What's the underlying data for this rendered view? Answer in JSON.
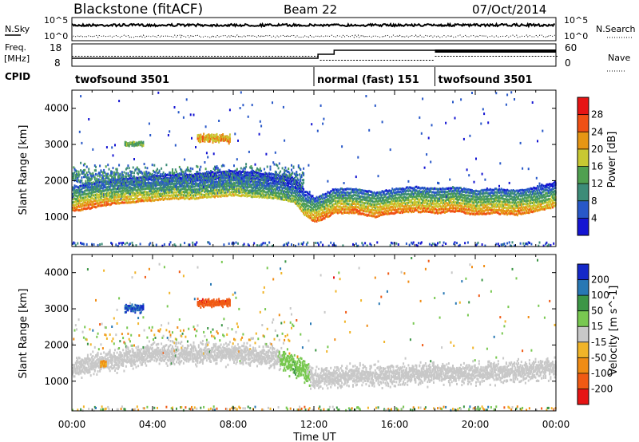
{
  "header": {
    "station": "Blackstone (fitACF)",
    "beam": "Beam 22",
    "date": "07/Oct/2014"
  },
  "noise_panel": {
    "left_label": "N.Sky",
    "right_label": "N.Search",
    "left_ticks": [
      "10^5",
      "10^0"
    ],
    "right_ticks": [
      "10^5",
      "10^0"
    ]
  },
  "freq_panel": {
    "left_label_line1": "Freq.",
    "left_label_line2": "[MHz]",
    "right_label": "Nave",
    "left_ticks": [
      "18",
      "8"
    ],
    "right_ticks": [
      "60",
      "0"
    ]
  },
  "cpid": {
    "label": "CPID",
    "segments": [
      {
        "name": "twofsound 3501",
        "start_hour": 0,
        "end_hour": 12
      },
      {
        "name": "normal (fast) 151",
        "start_hour": 12,
        "end_hour": 18
      },
      {
        "name": "twofsound 3501",
        "start_hour": 18,
        "end_hour": 24
      }
    ]
  },
  "axes": {
    "ylabel": "Slant Range [km]",
    "xlabel": "Time UT",
    "x_ticks": [
      "00:00",
      "04:00",
      "08:00",
      "12:00",
      "16:00",
      "20:00",
      "00:00"
    ],
    "y_ticks": [
      "1000",
      "2000",
      "3000",
      "4000"
    ]
  },
  "power_colorbar": {
    "label": "Power [dB]",
    "ticks": [
      "28",
      "24",
      "20",
      "16",
      "12",
      "8",
      "4"
    ],
    "colors": [
      "#1414d2",
      "#2858c8",
      "#3c8c78",
      "#50a050",
      "#c8c832",
      "#e69614",
      "#f05014",
      "#e61414"
    ]
  },
  "velocity_colorbar": {
    "label": "Velocity [m s^-1]",
    "ticks": [
      "200",
      "100",
      "50",
      "15",
      "-15",
      "-50",
      "-100",
      "-200"
    ],
    "colors": [
      "#1428c8",
      "#2878b4",
      "#3c9646",
      "#78c850",
      "#c8c8c8",
      "#f0b428",
      "#f08c14",
      "#f05a14",
      "#e61414"
    ]
  },
  "chart_data": [
    {
      "type": "heatmap",
      "title": "Power",
      "xlabel": "Time UT",
      "ylabel": "Slant Range [km]",
      "xlim": [
        0,
        24
      ],
      "ylim": [
        180,
        4500
      ],
      "colorbar": "Power [dB]",
      "echo_band_power": {
        "hours": [
          0,
          1,
          2,
          3,
          4,
          5,
          6,
          7,
          8,
          9,
          10,
          11,
          11.5,
          12,
          12.5,
          13,
          14,
          15,
          16,
          17,
          18,
          19,
          20,
          21,
          22,
          23,
          24
        ],
        "range_km": [
          1200,
          1300,
          1400,
          1450,
          1500,
          1550,
          1550,
          1600,
          1650,
          1600,
          1550,
          1450,
          1100,
          900,
          1000,
          1150,
          1150,
          1050,
          1150,
          1200,
          1150,
          1200,
          1100,
          1150,
          1100,
          1200,
          1350
        ],
        "power_db": [
          28,
          28,
          26,
          26,
          24,
          24,
          22,
          22,
          22,
          20,
          20,
          20,
          24,
          28,
          28,
          28,
          28,
          28,
          28,
          28,
          28,
          28,
          28,
          28,
          28,
          26,
          24
        ]
      }
    },
    {
      "type": "heatmap",
      "title": "Velocity",
      "xlabel": "Time UT",
      "ylabel": "Slant Range [km]",
      "xlim": [
        0,
        24
      ],
      "ylim": [
        180,
        4500
      ],
      "colorbar": "Velocity [m s^-1]",
      "echo_band_velocity": {
        "hours": [
          0,
          2,
          4,
          6,
          8,
          10,
          11,
          12,
          14,
          16,
          18,
          20,
          22,
          24
        ],
        "range_km": [
          1400,
          1600,
          1800,
          1800,
          1800,
          1700,
          1500,
          1100,
          1200,
          1200,
          1250,
          1250,
          1300,
          1400
        ],
        "velocity_ms": [
          0,
          0,
          0,
          0,
          0,
          0,
          50,
          0,
          0,
          0,
          0,
          0,
          0,
          0
        ]
      },
      "patches": [
        {
          "hour_start": 6.2,
          "hour_end": 7.8,
          "range_km": 3200,
          "velocity_ms": -180
        },
        {
          "hour_start": 2.6,
          "hour_end": 3.5,
          "range_km": 3050,
          "velocity_ms": 200
        },
        {
          "hour_start": 1.4,
          "hour_end": 1.7,
          "range_km": 1500,
          "velocity_ms": -60
        }
      ]
    }
  ]
}
